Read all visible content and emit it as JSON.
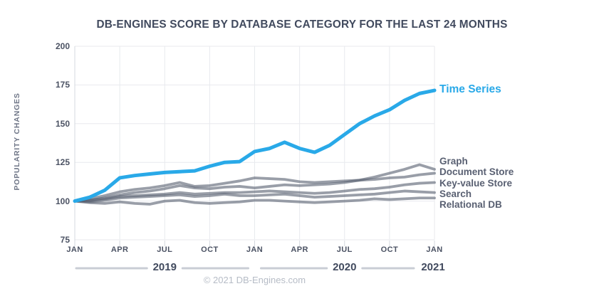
{
  "title": "DB-ENGINES SCORE BY DATABASE CATEGORY FOR THE LAST 24 MONTHS",
  "y_axis_label": "POPULARITY CHANGES",
  "footer": "© 2021 DB-Engines.com",
  "colors": {
    "accent_blue": "#29a9e8",
    "line_gray": "rgba(85,93,110,0.6)",
    "grid": "#e8eaee",
    "axis_tick": "#d5d9df",
    "year_line": "#c9cdd5",
    "title_text": "#414a5e",
    "tick_text": "#4b5263",
    "muted_text": "#b6bcc6"
  },
  "chart_data": {
    "type": "line",
    "title": "DB-ENGINES SCORE BY DATABASE CATEGORY FOR THE LAST 24 MONTHS",
    "xlabel": "",
    "ylabel": "POPULARITY CHANGES",
    "ylim": [
      75,
      200
    ],
    "y_ticks": [
      75,
      100,
      125,
      150,
      175,
      200
    ],
    "grid": true,
    "legend_position": "right",
    "x_unit": "monthly points, Jan 2019 through Jan 2021 (25 points)",
    "x_quarter_tick_labels": [
      "JAN",
      "APR",
      "JUL",
      "OCT",
      "JAN",
      "APR",
      "JUL",
      "OCT",
      "JAN"
    ],
    "year_labels": [
      "2019",
      "2020",
      "2021"
    ],
    "series": [
      {
        "name": "Time Series",
        "color": "#29a9e8",
        "emphasis": true,
        "values": [
          100,
          102.5,
          107,
          115,
          116.5,
          117.5,
          118.5,
          119,
          119.5,
          122.5,
          125,
          125.5,
          132,
          134,
          138,
          134,
          131.5,
          136,
          143,
          150,
          155,
          159,
          165,
          169.5,
          171.5
        ]
      },
      {
        "name": "Graph",
        "color": "gray",
        "emphasis": false,
        "values": [
          100,
          100.5,
          102,
          104,
          105.5,
          106.5,
          108,
          110,
          108.5,
          108,
          109,
          109.5,
          108.5,
          109.5,
          110.5,
          110,
          110.5,
          111,
          112,
          113.5,
          115.5,
          118,
          120.5,
          123.5,
          120.5
        ]
      },
      {
        "name": "Document Store",
        "color": "gray",
        "emphasis": false,
        "values": [
          100,
          101.5,
          103.5,
          106,
          107.5,
          108.5,
          110,
          112,
          109.5,
          110,
          111.5,
          113,
          115,
          114.5,
          114,
          112.5,
          112,
          112.5,
          113,
          113.5,
          114,
          115,
          115.5,
          117,
          118
        ]
      },
      {
        "name": "Key-value Store",
        "color": "gray",
        "emphasis": false,
        "values": [
          100,
          100.5,
          101.5,
          103,
          103.5,
          104,
          104.5,
          105.5,
          104.5,
          105,
          105.5,
          105.5,
          106,
          106.5,
          106,
          105.5,
          105,
          105.5,
          106.5,
          107.5,
          108,
          109,
          110.5,
          111.5,
          112
        ]
      },
      {
        "name": "Search",
        "color": "gray",
        "emphasis": false,
        "values": [
          100,
          99.5,
          100.5,
          102,
          102.5,
          103,
          103.5,
          104,
          103,
          103.5,
          104.5,
          103.5,
          103.5,
          104,
          104.5,
          103.5,
          102.5,
          103,
          103.5,
          104,
          104.5,
          105.5,
          106.5,
          106,
          105.5
        ]
      },
      {
        "name": "Relational DB",
        "color": "gray",
        "emphasis": false,
        "values": [
          100,
          99,
          98.5,
          99.5,
          98.5,
          98,
          100,
          100.5,
          99,
          98.5,
          99,
          99.5,
          100.5,
          100.5,
          100,
          99.5,
          99,
          99.5,
          100,
          100.5,
          101.5,
          101,
          101.5,
          102,
          102
        ]
      }
    ]
  }
}
